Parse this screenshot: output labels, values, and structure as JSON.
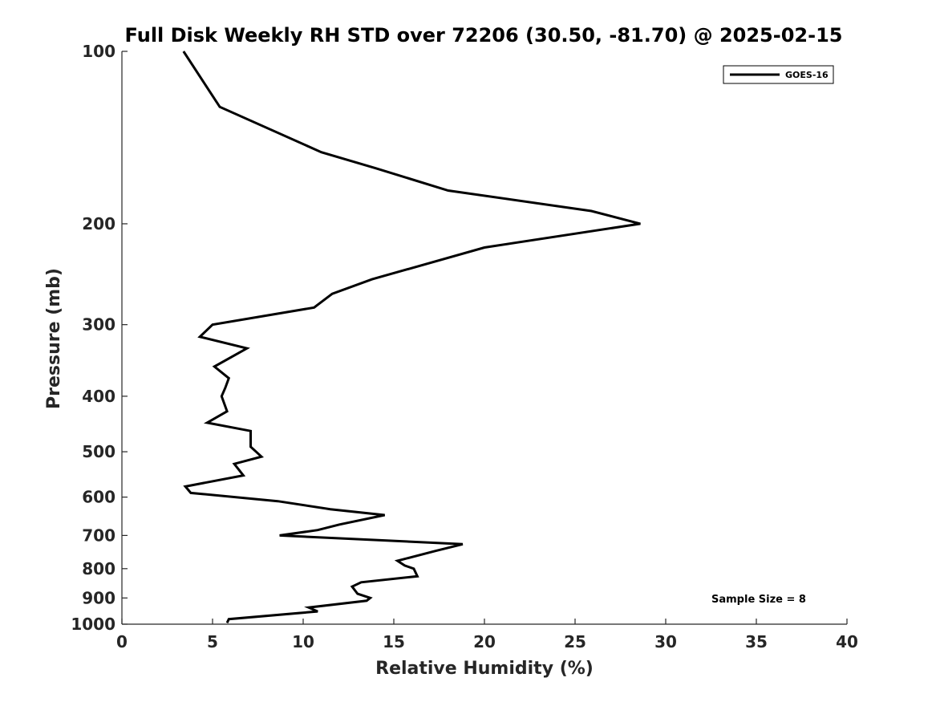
{
  "chart_data": {
    "type": "line",
    "title": "Full Disk Weekly RH STD over 72206 (30.50, -81.70) @ 2025-02-15",
    "xlabel": "Relative Humidity (%)",
    "ylabel": "Pressure (mb)",
    "xlim": [
      0,
      40
    ],
    "ylim": [
      100,
      1000
    ],
    "y_scale": "log",
    "y_reversed": true,
    "x_ticks": [
      0,
      5,
      10,
      15,
      20,
      25,
      30,
      35,
      40
    ],
    "y_ticks": [
      100,
      200,
      300,
      400,
      500,
      600,
      700,
      800,
      900,
      1000
    ],
    "grid": false,
    "legend_position": "top-right",
    "series": [
      {
        "name": "GOES-16",
        "color": "#000000",
        "points": [
          [
            3.4,
            100
          ],
          [
            5.4,
            125
          ],
          [
            11.0,
            150
          ],
          [
            14.0,
            160
          ],
          [
            18.0,
            175
          ],
          [
            25.9,
            190
          ],
          [
            28.6,
            200
          ],
          [
            20.0,
            220
          ],
          [
            13.8,
            250
          ],
          [
            11.6,
            265
          ],
          [
            10.6,
            280
          ],
          [
            5.0,
            300
          ],
          [
            4.3,
            315
          ],
          [
            6.9,
            330
          ],
          [
            5.1,
            355
          ],
          [
            5.9,
            372
          ],
          [
            5.7,
            387
          ],
          [
            5.5,
            400
          ],
          [
            5.8,
            425
          ],
          [
            4.7,
            445
          ],
          [
            7.1,
            460
          ],
          [
            7.1,
            490
          ],
          [
            7.7,
            510
          ],
          [
            6.2,
            525
          ],
          [
            6.7,
            550
          ],
          [
            3.5,
            575
          ],
          [
            3.8,
            590
          ],
          [
            8.6,
            610
          ],
          [
            11.5,
            630
          ],
          [
            14.5,
            645
          ],
          [
            12.0,
            670
          ],
          [
            10.8,
            685
          ],
          [
            8.7,
            700
          ],
          [
            18.8,
            725
          ],
          [
            17.3,
            745
          ],
          [
            15.2,
            775
          ],
          [
            15.6,
            790
          ],
          [
            16.1,
            800
          ],
          [
            16.3,
            825
          ],
          [
            13.2,
            845
          ],
          [
            12.7,
            860
          ],
          [
            13.0,
            885
          ],
          [
            13.7,
            900
          ],
          [
            13.5,
            910
          ],
          [
            10.3,
            935
          ],
          [
            10.8,
            950
          ],
          [
            5.9,
            980
          ],
          [
            5.8,
            995
          ]
        ]
      }
    ],
    "annotations": [
      {
        "text": "Sample Size = 8"
      }
    ]
  }
}
